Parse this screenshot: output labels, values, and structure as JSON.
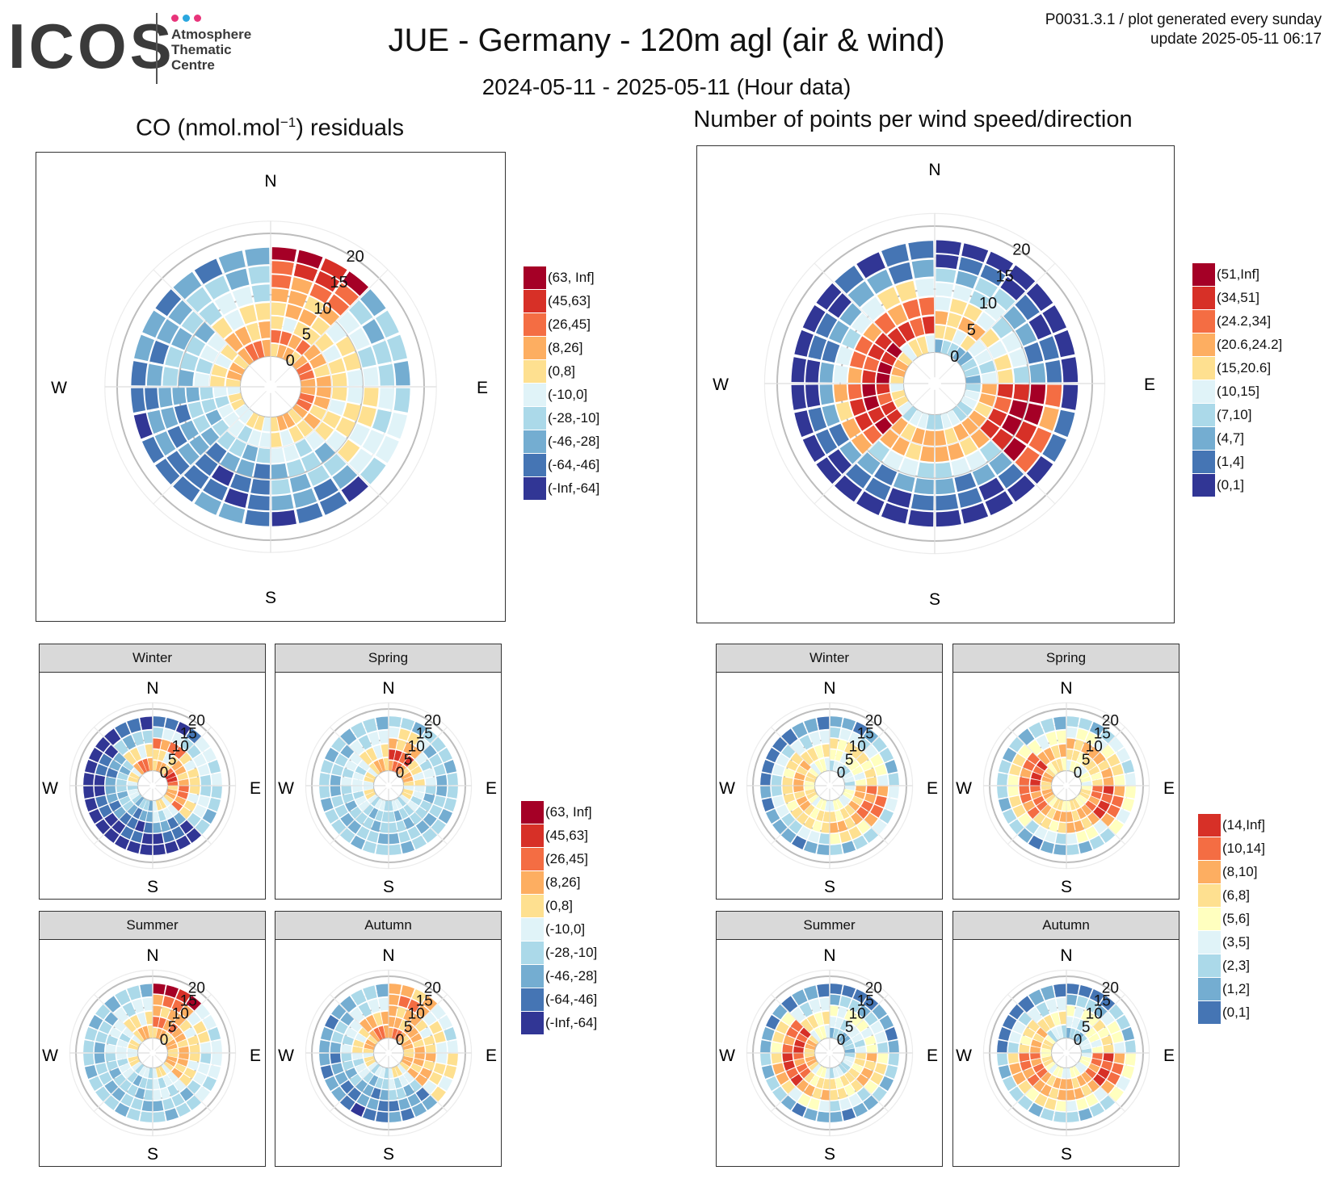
{
  "header": {
    "logo_text": "ICOS",
    "logo_lines": [
      "Atmosphere",
      "Thematic",
      "Centre"
    ],
    "logo_dot_colors": [
      "#e8347a",
      "#2aa7df",
      "#e8347a"
    ],
    "title": "JUE - Germany - 120m agl (air & wind)",
    "subtitle": "2024-05-11 - 2025-05-11 (Hour data)",
    "meta_line_1": "P0031.3.1 / plot generated every sunday",
    "meta_line_2": "update  2025-05-11 06:17"
  },
  "left_title": {
    "prefix": "CO (nmol.mol",
    "sup": "−1",
    "suffix": ") residuals"
  },
  "right_title": "Number of points per wind speed/direction",
  "compass": {
    "n": "N",
    "e": "E",
    "s": "S",
    "w": "W"
  },
  "seasons": [
    "Winter",
    "Spring",
    "Summer",
    "Autumn"
  ],
  "legends": {
    "co": {
      "labels": [
        "(63, Inf]",
        "(45,63]",
        "(26,45]",
        "(8,26]",
        "(0,8]",
        "(-10,0]",
        "(-28,-10]",
        "(-46,-28]",
        "(-64,-46]",
        "(-Inf,-64]"
      ],
      "colors": [
        "#a50026",
        "#d73027",
        "#f46d43",
        "#fdae61",
        "#fee090",
        "#e0f3f8",
        "#abd9e9",
        "#74add1",
        "#4575b4",
        "#313695"
      ]
    },
    "count_main": {
      "labels": [
        "(51,Inf]",
        "(34,51]",
        "(24.2,34]",
        "(20.6,24.2]",
        "(15,20.6]",
        "(10,15]",
        "(7,10]",
        "(4,7]",
        "(1,4]",
        "(0,1]"
      ],
      "colors": [
        "#a50026",
        "#d73027",
        "#f46d43",
        "#fdae61",
        "#fee090",
        "#e0f3f8",
        "#abd9e9",
        "#74add1",
        "#4575b4",
        "#313695"
      ]
    },
    "count_season": {
      "labels": [
        "(14,Inf]",
        "(10,14]",
        "(8,10]",
        "(6,8]",
        "(5,6]",
        "(3,5]",
        "(2,3]",
        "(1,2]",
        "(0,1]"
      ],
      "colors": [
        "#d73027",
        "#f46d43",
        "#fdae61",
        "#fee090",
        "#ffffbf",
        "#e0f3f8",
        "#abd9e9",
        "#74add1",
        "#4575b4"
      ]
    }
  },
  "chart_data": [
    {
      "id": "co-residuals-all",
      "type": "heatmap",
      "title": "CO (nmol.mol−1) residuals",
      "coordinates": "polar (wind direction, wind speed)",
      "radial_ticks": [
        "0",
        "5",
        "10",
        "15",
        "20"
      ],
      "radial_range": [
        0,
        20
      ],
      "direction_labels": [
        "N",
        "E",
        "S",
        "W"
      ],
      "sectors": [
        {
          "from_deg": 0,
          "to_deg": 45,
          "classes": [
            3,
            2,
            4,
            3,
            3,
            2,
            1,
            0
          ]
        },
        {
          "from_deg": 45,
          "to_deg": 90,
          "classes": [
            2,
            3,
            4,
            4,
            5,
            6,
            6
          ]
        },
        {
          "from_deg": 90,
          "to_deg": 135,
          "classes": [
            2,
            3,
            4,
            4,
            4,
            5,
            5
          ]
        },
        {
          "from_deg": 135,
          "to_deg": 180,
          "classes": [
            3,
            4,
            5,
            6,
            6,
            7,
            8
          ]
        },
        {
          "from_deg": 180,
          "to_deg": 225,
          "classes": [
            4,
            5,
            6,
            7,
            8,
            8,
            7
          ]
        },
        {
          "from_deg": 225,
          "to_deg": 270,
          "classes": [
            4,
            5,
            6,
            6,
            7,
            7,
            7,
            8
          ]
        },
        {
          "from_deg": 270,
          "to_deg": 315,
          "classes": [
            3,
            4,
            5,
            6,
            6,
            7,
            7
          ]
        },
        {
          "from_deg": 315,
          "to_deg": 360,
          "classes": [
            2,
            3,
            4,
            5,
            6,
            7
          ]
        }
      ]
    },
    {
      "id": "count-all",
      "type": "heatmap",
      "title": "Number of points per wind speed/direction",
      "coordinates": "polar (wind direction, wind speed)",
      "radial_ticks": [
        "0",
        "5",
        "10",
        "15",
        "20"
      ],
      "radial_range": [
        0,
        20
      ],
      "direction_labels": [
        "N",
        "E",
        "S",
        "W"
      ],
      "sectors": [
        {
          "from_deg": 0,
          "to_deg": 45,
          "classes": [
            6,
            4,
            3,
            4,
            5,
            6,
            8,
            9
          ]
        },
        {
          "from_deg": 45,
          "to_deg": 90,
          "classes": [
            6,
            5,
            4,
            5,
            7,
            8,
            9
          ]
        },
        {
          "from_deg": 90,
          "to_deg": 135,
          "classes": [
            5,
            3,
            1,
            0,
            0,
            2,
            8
          ]
        },
        {
          "from_deg": 135,
          "to_deg": 180,
          "classes": [
            5,
            3,
            3,
            5,
            7,
            8,
            9
          ]
        },
        {
          "from_deg": 180,
          "to_deg": 225,
          "classes": [
            5,
            3,
            3,
            5,
            7,
            8,
            9
          ]
        },
        {
          "from_deg": 225,
          "to_deg": 270,
          "classes": [
            4,
            1,
            0,
            1,
            3,
            7,
            8,
            9
          ]
        },
        {
          "from_deg": 270,
          "to_deg": 315,
          "classes": [
            3,
            0,
            1,
            2,
            5,
            7,
            8,
            9
          ]
        },
        {
          "from_deg": 315,
          "to_deg": 360,
          "classes": [
            4,
            1,
            2,
            4,
            7,
            8
          ]
        }
      ]
    },
    {
      "id": "co-residuals-seasonal",
      "type": "heatmap",
      "facets": [
        {
          "season": "Winter",
          "sectors": [
            [
              3,
              4,
              2,
              5,
              8
            ],
            [
              1,
              3,
              4,
              5,
              5
            ],
            [
              3,
              2,
              4,
              5,
              6
            ],
            [
              4,
              5,
              7,
              8,
              9
            ],
            [
              6,
              7,
              8,
              8,
              9
            ],
            [
              5,
              6,
              7,
              8,
              9
            ],
            [
              4,
              6,
              7,
              8,
              9
            ],
            [
              2,
              4,
              6,
              8
            ]
          ]
        },
        {
          "season": "Spring",
          "sectors": [
            [
              2,
              1,
              3,
              4,
              6
            ],
            [
              3,
              4,
              5,
              6,
              6
            ],
            [
              4,
              5,
              6,
              6,
              6
            ],
            [
              5,
              6,
              6,
              6,
              6
            ],
            [
              5,
              6,
              6,
              6,
              6
            ],
            [
              4,
              5,
              6,
              6,
              6
            ],
            [
              4,
              5,
              5,
              6,
              6
            ],
            [
              3,
              4,
              5,
              6
            ]
          ]
        },
        {
          "season": "Summer",
          "sectors": [
            [
              3,
              2,
              3,
              2,
              0
            ],
            [
              3,
              3,
              4,
              4,
              5
            ],
            [
              3,
              3,
              4,
              5,
              5
            ],
            [
              4,
              5,
              5,
              6,
              6
            ],
            [
              5,
              6,
              6,
              6,
              6
            ],
            [
              4,
              5,
              6,
              6,
              6
            ],
            [
              4,
              5,
              5,
              6,
              6
            ],
            [
              3,
              4,
              5,
              6
            ]
          ]
        },
        {
          "season": "Autumn",
          "sectors": [
            [
              2,
              3,
              3,
              2,
              3
            ],
            [
              3,
              3,
              4,
              4,
              5
            ],
            [
              3,
              3,
              3,
              4,
              4
            ],
            [
              4,
              5,
              6,
              7,
              7
            ],
            [
              5,
              6,
              7,
              7,
              8
            ],
            [
              4,
              5,
              6,
              7,
              7
            ],
            [
              3,
              4,
              5,
              6,
              7
            ],
            [
              2,
              3,
              5,
              6
            ]
          ]
        }
      ]
    },
    {
      "id": "count-seasonal",
      "type": "heatmap",
      "facets": [
        {
          "season": "Winter",
          "sectors": [
            [
              5,
              4,
              3,
              5,
              7
            ],
            [
              5,
              4,
              3,
              4,
              6
            ],
            [
              4,
              2,
              1,
              1,
              5
            ],
            [
              4,
              3,
              2,
              3,
              6
            ],
            [
              4,
              3,
              3,
              5,
              7
            ],
            [
              3,
              2,
              3,
              5,
              7
            ],
            [
              3,
              2,
              3,
              5,
              8
            ],
            [
              4,
              3,
              5,
              7
            ]
          ]
        },
        {
          "season": "Spring",
          "sectors": [
            [
              4,
              3,
              2,
              4,
              6
            ],
            [
              4,
              3,
              2,
              3,
              5
            ],
            [
              3,
              1,
              0,
              1,
              4
            ],
            [
              3,
              2,
              2,
              4,
              6
            ],
            [
              3,
              2,
              3,
              5,
              7
            ],
            [
              2,
              1,
              1,
              3,
              6
            ],
            [
              2,
              0,
              1,
              3,
              6
            ],
            [
              3,
              2,
              4,
              6
            ]
          ]
        },
        {
          "season": "Summer",
          "sectors": [
            [
              6,
              5,
              4,
              6,
              8
            ],
            [
              6,
              5,
              4,
              5,
              7
            ],
            [
              5,
              3,
              2,
              3,
              6
            ],
            [
              5,
              3,
              3,
              5,
              7
            ],
            [
              4,
              3,
              2,
              4,
              7
            ],
            [
              2,
              1,
              0,
              2,
              6
            ],
            [
              2,
              0,
              1,
              3,
              7
            ],
            [
              4,
              3,
              5,
              7
            ]
          ]
        },
        {
          "season": "Autumn",
          "sectors": [
            [
              6,
              5,
              4,
              6,
              8
            ],
            [
              5,
              4,
              3,
              4,
              6
            ],
            [
              4,
              1,
              0,
              1,
              4
            ],
            [
              4,
              2,
              2,
              4,
              6
            ],
            [
              4,
              2,
              2,
              3,
              6
            ],
            [
              3,
              1,
              1,
              2,
              6
            ],
            [
              3,
              2,
              3,
              5,
              8
            ],
            [
              5,
              3,
              5,
              7
            ]
          ]
        }
      ]
    }
  ]
}
